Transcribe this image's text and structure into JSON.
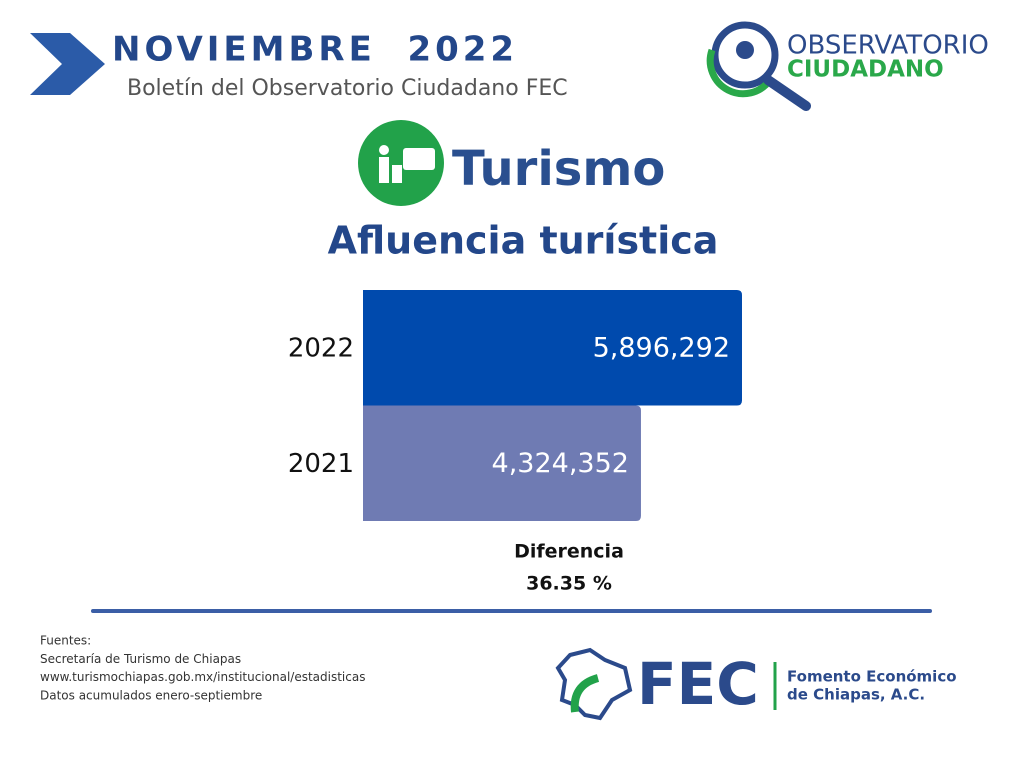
{
  "header": {
    "title": "NOVIEMBRE  2022",
    "subtitle": "Boletín del Observatorio Ciudadano FEC"
  },
  "logo_top": {
    "line1": "OBSERVATORIO",
    "line2": "CIUDADANO"
  },
  "section": {
    "title": "Turismo"
  },
  "chart_data": {
    "type": "hbar",
    "title": "Afluencia turística",
    "categories": [
      "2022",
      "2021"
    ],
    "values": [
      5896292,
      4324352
    ],
    "value_labels": [
      "5,896,292",
      "4,324,352"
    ],
    "colors": [
      "#004aad",
      "#6f7bb3"
    ],
    "annotation": {
      "label": "Diferencia",
      "value": "36.35 %"
    }
  },
  "footer": {
    "lines": [
      "Fuentes:",
      "Secretaría de Turismo de Chiapas",
      "www.turismochiapas.gob.mx/institucional/estadisticas",
      "Datos acumulados enero-septiembre"
    ]
  },
  "logo_bottom": {
    "mark": "FEC",
    "line1": "Fomento Económico",
    "line2": "de Chiapas, A.C."
  }
}
